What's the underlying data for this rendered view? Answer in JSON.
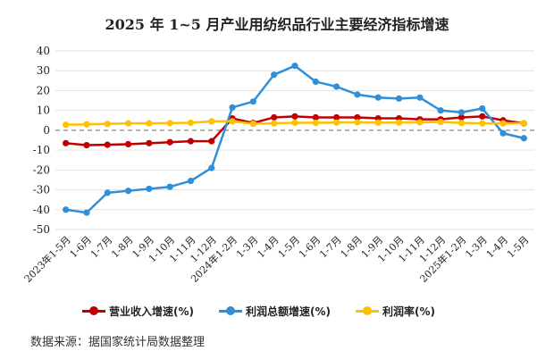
{
  "chart_data": {
    "type": "line",
    "title": "2025 年 1~5 月产业用纺织品行业主要经济指标增速",
    "categories": [
      "2023年1-5月",
      "1-6月",
      "1-7月",
      "1-8月",
      "1-9月",
      "1-10月",
      "1-11月",
      "1-12月",
      "2024年1-2月",
      "1-3月",
      "1-4月",
      "1-5月",
      "1-6月",
      "1-7月",
      "1-8月",
      "1-9月",
      "1-10月",
      "1-11月",
      "1-12月",
      "2025年1-2月",
      "1-3月",
      "1-4月",
      "1-5月"
    ],
    "series": [
      {
        "name": "营业收入增速(%)",
        "color": "#c00000",
        "values": [
          -6.5,
          -7.5,
          -7.3,
          -7.0,
          -6.5,
          -6.0,
          -5.5,
          -5.5,
          6.0,
          3.7,
          6.5,
          7.0,
          6.5,
          6.5,
          6.5,
          6.0,
          6.0,
          5.5,
          5.5,
          6.5,
          7.0,
          5.0,
          3.5
        ]
      },
      {
        "name": "利润总额增速(%)",
        "color": "#2f8fd8",
        "values": [
          -40.0,
          -41.5,
          -31.5,
          -30.5,
          -29.5,
          -28.5,
          -25.5,
          -19.0,
          11.5,
          14.5,
          28.0,
          32.5,
          24.5,
          22.0,
          18.0,
          16.5,
          16.0,
          16.5,
          10.0,
          9.0,
          11.0,
          -1.5,
          -4.0
        ]
      },
      {
        "name": "利润率(%)",
        "color": "#ffc000",
        "values": [
          2.8,
          3.0,
          3.2,
          3.5,
          3.5,
          3.6,
          3.8,
          4.5,
          4.5,
          3.3,
          3.5,
          3.8,
          3.8,
          3.9,
          4.0,
          3.9,
          3.9,
          4.0,
          4.2,
          3.7,
          3.5,
          3.5,
          3.6
        ]
      }
    ],
    "ylim": [
      -50,
      40
    ],
    "yticks": [
      40,
      30,
      20,
      10,
      0,
      -10,
      -20,
      -30,
      -40,
      -50
    ],
    "grid": true,
    "zero_line": "dashed",
    "legend": "bottom"
  },
  "source_note": "数据来源：据国家统计局数据整理"
}
